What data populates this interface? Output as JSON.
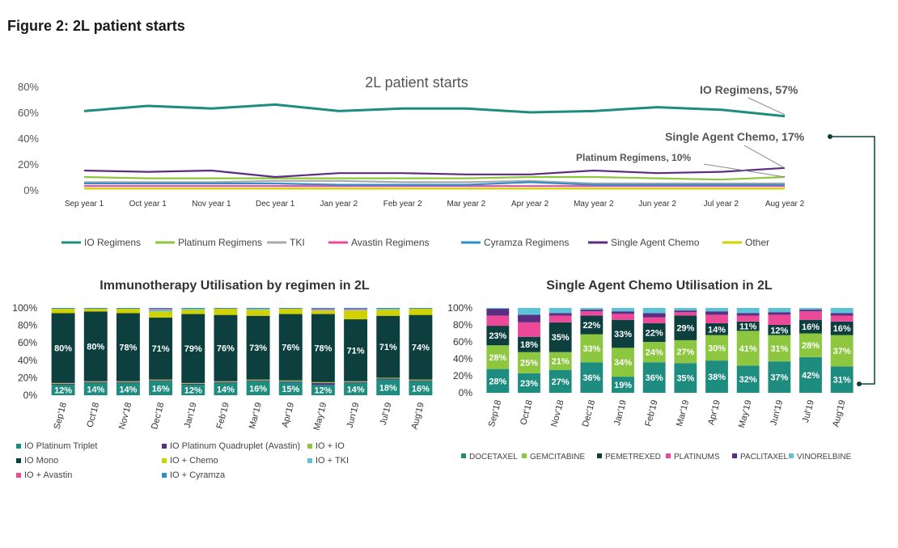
{
  "figure_title": "Figure 2: 2L patient starts",
  "chart_data": [
    {
      "type": "line",
      "title": "2L patient starts",
      "categories": [
        "Sep year 1",
        "Oct year 1",
        "Nov year 1",
        "Dec year 1",
        "Jan year 2",
        "Feb year 2",
        "Mar year 2",
        "Apr year 2",
        "May year 2",
        "Jun year 2",
        "Jul year 2",
        "Aug year 2"
      ],
      "y_ticks": [
        "80%",
        "60%",
        "40%",
        "20%",
        "0%"
      ],
      "ylim": [
        0,
        80
      ],
      "series": [
        {
          "name": "IO Regimens",
          "color": "#1e8c7e",
          "values": [
            61,
            65,
            63,
            66,
            61,
            63,
            63,
            60,
            61,
            64,
            62,
            57
          ]
        },
        {
          "name": "Platinum Regimens",
          "color": "#8dc63f",
          "values": [
            10,
            9,
            9,
            9,
            9,
            9,
            9,
            10,
            10,
            9,
            8,
            10
          ]
        },
        {
          "name": "TKI",
          "color": "#aaaaaa",
          "values": [
            6,
            6,
            6,
            7,
            7,
            6,
            6,
            7,
            5,
            5,
            5,
            5
          ]
        },
        {
          "name": "Avastin Regimens",
          "color": "#ec4999",
          "values": [
            3,
            3,
            3,
            3,
            3,
            3,
            3,
            3,
            3,
            3,
            3,
            3
          ]
        },
        {
          "name": "Cyramza Regimens",
          "color": "#2e8fcb",
          "values": [
            5,
            5,
            5,
            5,
            4,
            4,
            4,
            6,
            4,
            4,
            4,
            4
          ]
        },
        {
          "name": "Single Agent Chemo",
          "color": "#5a2d82",
          "values": [
            15,
            14,
            15,
            10,
            13,
            13,
            12,
            12,
            15,
            13,
            14,
            17
          ]
        },
        {
          "name": "Other",
          "color": "#d4d000",
          "values": [
            1,
            1,
            1,
            1,
            1,
            1,
            1,
            1,
            1,
            1,
            1,
            1
          ]
        }
      ],
      "annotations": [
        "IO Regimens, 57%",
        "Single Agent Chemo, 17%",
        "Platinum Regimens, 10%"
      ]
    },
    {
      "type": "bar",
      "stacked": true,
      "title": "Immunotherapy Utilisation by regimen in 2L",
      "categories": [
        "Sep'18",
        "Oct'18",
        "Nov'18",
        "Dec'18",
        "Jan'19",
        "Feb'19",
        "Mar'19",
        "Apr'19",
        "May'19",
        "Jun'19",
        "Jul'19",
        "Aug'19"
      ],
      "y_ticks": [
        "100%",
        "80%",
        "60%",
        "40%",
        "20%",
        "0%"
      ],
      "ylim": [
        0,
        100
      ],
      "series": [
        {
          "name": "IO Platinum Triplet",
          "color": "#1e8c7e",
          "values": [
            12,
            14,
            14,
            16,
            12,
            14,
            16,
            15,
            12,
            14,
            18,
            16
          ],
          "labels": [
            "12%",
            "14%",
            "14%",
            "16%",
            "12%",
            "14%",
            "16%",
            "15%",
            "12%",
            "14%",
            "18%",
            "16%"
          ]
        },
        {
          "name": "IO Platinum Quadruplet (Avastin)",
          "color": "#5a2d82",
          "values": [
            1,
            1,
            1,
            1,
            1,
            1,
            1,
            1,
            2,
            1,
            1,
            1
          ]
        },
        {
          "name": "IO + IO",
          "color": "#8dc63f",
          "values": [
            1,
            1,
            1,
            1,
            1,
            1,
            1,
            1,
            1,
            1,
            1,
            1
          ]
        },
        {
          "name": "IO Mono",
          "color": "#0d3f3f",
          "values": [
            80,
            80,
            78,
            71,
            79,
            76,
            73,
            76,
            78,
            71,
            71,
            74
          ],
          "labels": [
            "80%",
            "80%",
            "78%",
            "71%",
            "79%",
            "76%",
            "73%",
            "76%",
            "78%",
            "71%",
            "71%",
            "74%"
          ]
        },
        {
          "name": "IO + Chemo",
          "color": "#cfd200",
          "values": [
            5,
            3,
            5,
            7,
            5,
            7,
            7,
            6,
            4,
            10,
            7,
            7
          ]
        },
        {
          "name": "IO + TKI",
          "color": "#5bc3d8",
          "values": [
            0,
            0,
            0,
            2,
            1,
            0,
            1,
            0,
            1,
            1,
            1,
            0
          ]
        },
        {
          "name": "IO + Avastin",
          "color": "#ec4999",
          "values": [
            0,
            0,
            0,
            1,
            0,
            0,
            0,
            0,
            1,
            1,
            0,
            0
          ]
        },
        {
          "name": "IO + Cyramza",
          "color": "#2e8fcb",
          "values": [
            1,
            1,
            1,
            1,
            1,
            1,
            1,
            1,
            1,
            1,
            1,
            1
          ]
        }
      ],
      "legend_order": [
        "IO Platinum Triplet",
        "IO Platinum Quadruplet (Avastin)",
        "IO + IO",
        "IO Mono",
        "IO + Chemo",
        "IO + TKI",
        "IO + Avastin",
        "IO + Cyramza"
      ]
    },
    {
      "type": "bar",
      "stacked": true,
      "title": "Single Agent Chemo Utilisation in 2L",
      "categories": [
        "Sep'18",
        "Oct'18",
        "Nov'18",
        "Dec'18",
        "Jan'19",
        "Feb'19",
        "Mar'19",
        "Apr'19",
        "May'19",
        "Jun'19",
        "Jul'19",
        "Aug'19"
      ],
      "y_ticks": [
        "100%",
        "80%",
        "60%",
        "40%",
        "20%",
        "0%"
      ],
      "ylim": [
        0,
        100
      ],
      "series": [
        {
          "name": "DOCETAXEL",
          "color": "#1e8c7e",
          "values": [
            28,
            23,
            27,
            36,
            19,
            36,
            35,
            38,
            32,
            37,
            42,
            31
          ],
          "labels": [
            "28%",
            "23%",
            "27%",
            "36%",
            "19%",
            "36%",
            "35%",
            "38%",
            "32%",
            "37%",
            "42%",
            "31%"
          ]
        },
        {
          "name": "GEMCITABINE",
          "color": "#8dc63f",
          "values": [
            28,
            25,
            21,
            33,
            34,
            24,
            27,
            30,
            41,
            31,
            28,
            37
          ],
          "labels": [
            "28%",
            "25%",
            "21%",
            "33%",
            "34%",
            "24%",
            "27%",
            "30%",
            "41%",
            "31%",
            "28%",
            "37%"
          ]
        },
        {
          "name": "PEMETREXED",
          "color": "#0d3f3f",
          "values": [
            23,
            18,
            35,
            22,
            33,
            22,
            29,
            14,
            11,
            12,
            16,
            16
          ],
          "labels": [
            "23%",
            "18%",
            "35%",
            "22%",
            "33%",
            "22%",
            "29%",
            "14%",
            "11%",
            "12%",
            "16%",
            "16%"
          ]
        },
        {
          "name": "PLATINUMS",
          "color": "#ec4999",
          "values": [
            12,
            17,
            8,
            5,
            7,
            7,
            4,
            10,
            7,
            12,
            10,
            7
          ]
        },
        {
          "name": "PACLITAXEL",
          "color": "#5a2d82",
          "values": [
            8,
            9,
            3,
            2,
            3,
            5,
            2,
            4,
            3,
            3,
            2,
            3
          ]
        },
        {
          "name": "VINORELBINE",
          "color": "#5bc3d8",
          "values": [
            1,
            8,
            6,
            2,
            4,
            6,
            3,
            4,
            6,
            5,
            2,
            6
          ]
        }
      ]
    }
  ]
}
